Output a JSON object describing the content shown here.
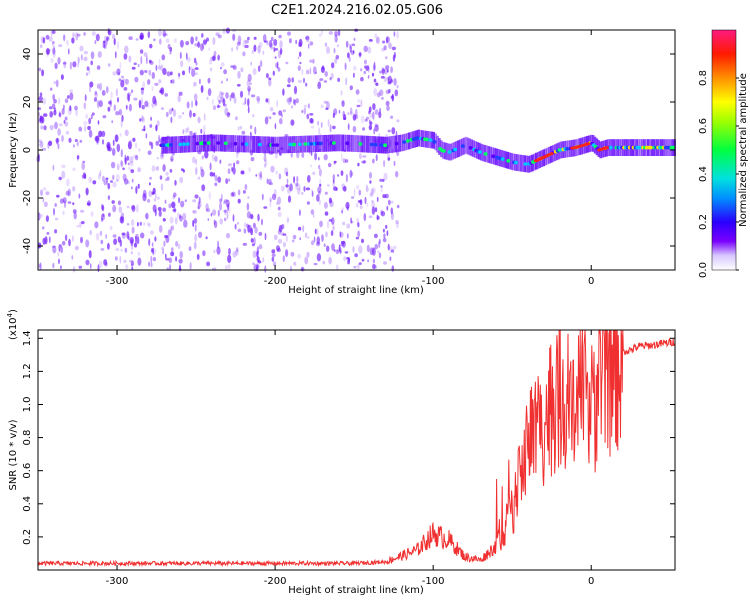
{
  "title": "C2E1.2024.216.02.05.G06",
  "colors": {
    "snr_line": "#f03030",
    "background": "#ffffff",
    "spectrogram_scatter": "#6a10ff"
  },
  "chart_data": [
    {
      "type": "heatmap",
      "name": "spectrogram",
      "xlabel": "Height of straight line (km)",
      "ylabel": "Frequency (Hz)",
      "xlim": [
        -350,
        53
      ],
      "ylim": [
        -50,
        50
      ],
      "xticks": [
        -300,
        -200,
        -100,
        0
      ],
      "yticks": [
        -40,
        -20,
        0,
        20,
        40
      ],
      "ridge": {
        "description_only_for_rendering": false,
        "x": [
          -270,
          -240,
          -200,
          -160,
          -130,
          -120,
          -110,
          -100,
          -95,
          -90,
          -80,
          -70,
          -60,
          -50,
          -40,
          -30,
          -20,
          -10,
          -5,
          0,
          5,
          10,
          20,
          30,
          40,
          53
        ],
        "y": [
          2,
          3,
          2,
          3,
          2,
          3,
          5,
          4,
          0,
          -1,
          2,
          -1,
          -3,
          -5,
          -6,
          -3,
          0,
          1,
          2,
          3,
          0,
          1,
          1,
          1,
          1,
          1
        ]
      },
      "colorbar": {
        "label": "Normalized spectral amplitude",
        "range": [
          0.0,
          1.0
        ],
        "ticks": [
          "0.0",
          "0.2",
          "0.4",
          "0.6",
          "0.8"
        ],
        "tick_values": [
          0.0,
          0.2,
          0.4,
          0.6,
          0.8
        ]
      }
    },
    {
      "type": "line",
      "name": "snr",
      "xlabel": "Height of straight line (km)",
      "ylabel": "SNR (10 * v/v)",
      "y_multiplier": "(x10^4)",
      "xlim": [
        -350,
        53
      ],
      "ylim": [
        0,
        14500
      ],
      "xticks": [
        -300,
        -200,
        -100,
        0
      ],
      "yticks": [
        "0.2",
        "0.4",
        "0.6",
        "0.8",
        "1.0",
        "1.2",
        "1.4"
      ],
      "ytick_values": [
        2000,
        4000,
        6000,
        8000,
        10000,
        12000,
        14000
      ],
      "envelope": {
        "x": [
          -350,
          -250,
          -150,
          -130,
          -110,
          -100,
          -90,
          -80,
          -70,
          -60,
          -50,
          -45,
          -40,
          -35,
          -30,
          -25,
          -20,
          -15,
          -10,
          -5,
          0,
          5,
          10,
          15,
          20,
          25,
          30,
          40,
          53
        ],
        "y": [
          400,
          400,
          400,
          500,
          1200,
          2200,
          1800,
          800,
          600,
          1500,
          3500,
          5500,
          8000,
          8500,
          9000,
          10000,
          11000,
          10000,
          9000,
          11000,
          9500,
          11500,
          12000,
          12500,
          13200,
          13300,
          13500,
          13600,
          13800
        ]
      }
    }
  ]
}
